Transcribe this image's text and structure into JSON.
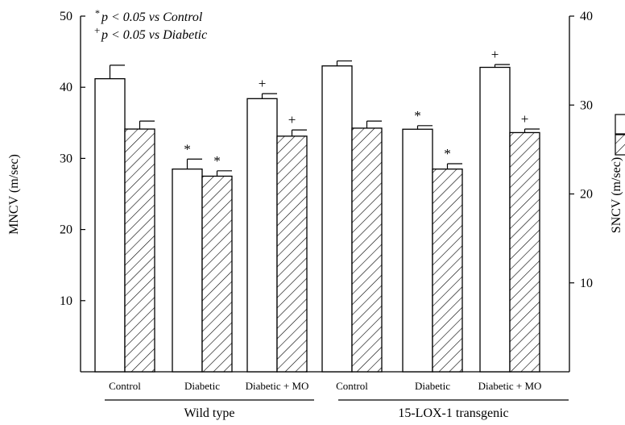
{
  "chart_data": {
    "type": "bar",
    "legend": [
      {
        "superscript": "*",
        "text": "p < 0.05 vs Control"
      },
      {
        "superscript": "+",
        "text": "p < 0.05 vs Diabetic"
      }
    ],
    "left_axis": {
      "label": "MNCV (m/sec)",
      "ylim": [
        0,
        50
      ],
      "ticks": [
        "10",
        "20",
        "30",
        "40",
        "50"
      ]
    },
    "right_axis": {
      "label": "SNCV (m/sec)",
      "ylim": [
        0,
        40
      ],
      "ticks": [
        "10",
        "20",
        "30",
        "40"
      ]
    },
    "groups": [
      {
        "label": "Wild type",
        "categories": [
          "Control",
          "Diabetic",
          "Diabetic + MO"
        ]
      },
      {
        "label": "15-LOX-1 transgenic",
        "categories": [
          "Control",
          "Diabetic",
          "Diabetic + MO"
        ]
      }
    ],
    "series": [
      {
        "axis": "left",
        "fill": "open",
        "values": [
          41.2,
          28.5,
          38.4,
          43.0,
          34.1,
          42.8
        ],
        "errors": [
          1.9,
          1.4,
          0.7,
          0.7,
          0.5,
          0.4
        ],
        "markers": [
          "",
          "*",
          "+",
          "",
          "*",
          "+"
        ]
      },
      {
        "axis": "right",
        "fill": "hatched",
        "values": [
          27.3,
          22.0,
          26.5,
          27.4,
          22.8,
          26.9
        ],
        "errors": [
          0.9,
          0.6,
          0.7,
          0.8,
          0.6,
          0.4
        ],
        "markers": [
          "",
          "*",
          "+",
          "",
          "*",
          "+"
        ]
      }
    ],
    "grid": false
  },
  "colors": {
    "bar_fill": "#ffffff",
    "stroke": "#000000",
    "hatch": "#000000"
  }
}
